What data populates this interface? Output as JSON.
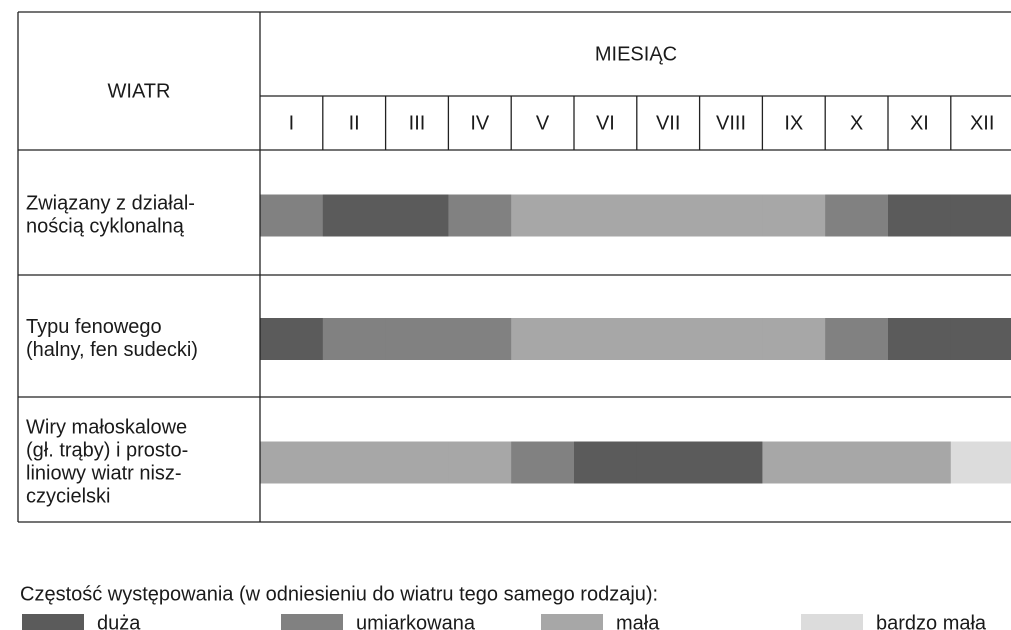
{
  "table": {
    "header": {
      "corner": "WIATR",
      "group": "MIESIĄC",
      "months": [
        "I",
        "II",
        "III",
        "IV",
        "V",
        "VI",
        "VII",
        "VIII",
        "IX",
        "X",
        "XI",
        "XII"
      ]
    },
    "rows": [
      {
        "label": [
          "Związany z działal-",
          "nością cyklonalną"
        ],
        "cells": [
          "umiarkowana",
          "duża",
          "duża",
          "umiarkowana",
          "mała",
          "mała",
          "mała",
          "mała",
          "mała",
          "umiarkowana",
          "duża",
          "duża"
        ]
      },
      {
        "label": [
          "Typu fenowego",
          "(halny, fen sudecki)"
        ],
        "cells": [
          "duża",
          "umiarkowana",
          "umiarkowana",
          "umiarkowana",
          "mała",
          "mała",
          "mała",
          "mała",
          "mała",
          "umiarkowana",
          "duża",
          "duża"
        ]
      },
      {
        "label": [
          "Wiry małoskalowe",
          "(gł. trąby) i prosto-",
          "liniowy wiatr nisz-",
          "czycielski"
        ],
        "cells": [
          "mała",
          "mała",
          "mała",
          "mała",
          "umiarkowana",
          "duża",
          "duża",
          "duża",
          "mała",
          "mała",
          "mała",
          "bardzo mała"
        ]
      }
    ]
  },
  "legend": {
    "title": "Częstość występowania (w odniesieniu do wiatru tego samego rodzaju):",
    "items": [
      {
        "name": "duża",
        "color": "#5b5b5b"
      },
      {
        "name": "umiarkowana",
        "color": "#818181"
      },
      {
        "name": "mała",
        "color": "#a7a7a7"
      },
      {
        "name": "bardzo mała",
        "color": "#dcdcdc"
      }
    ]
  }
}
